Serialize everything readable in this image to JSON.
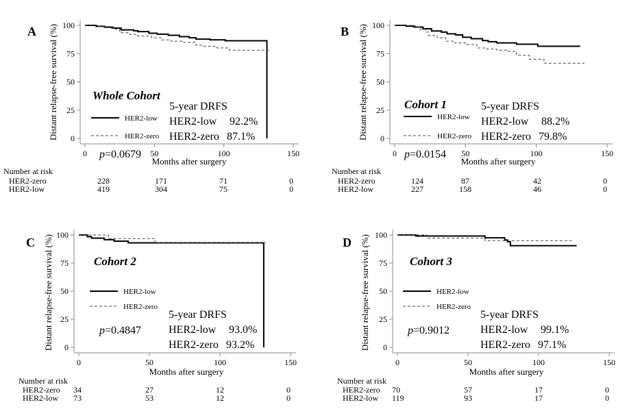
{
  "chart_data": [
    {
      "type": "line",
      "panel": "A",
      "title": "Whole Cohort",
      "xlabel": "Months after surgery",
      "ylabel": "Distant relapse-free survival (%)",
      "xlim": [
        0,
        150
      ],
      "ylim": [
        0,
        100
      ],
      "xticks": [
        "0",
        "50",
        "100",
        "150"
      ],
      "yticks": [
        "0",
        "25",
        "50",
        "75",
        "100"
      ],
      "legend": [
        "HER2-low",
        "HER2-zero"
      ],
      "pvalue_prefix": "p",
      "pvalue": "=0.0679",
      "drfs_title": "5-year DRFS",
      "drfs": [
        {
          "label": "HER2-low",
          "value": "92.2%"
        },
        {
          "label": "HER2-zero",
          "value": "87.1%"
        }
      ],
      "series": [
        {
          "name": "HER2-low",
          "style": "solid",
          "x": [
            0,
            8,
            14,
            20,
            26,
            35,
            38,
            46,
            52,
            60,
            68,
            75,
            80,
            90,
            101,
            131,
            131
          ],
          "y": [
            100,
            99.2,
            98.4,
            97.6,
            96.0,
            95.2,
            94.5,
            93.0,
            92.2,
            91.2,
            90.0,
            89.0,
            87.8,
            87.2,
            86.4,
            86.4,
            0
          ]
        },
        {
          "name": "HER2-zero",
          "style": "dashed",
          "x": [
            0,
            10,
            18,
            22,
            25,
            32,
            38,
            48,
            55,
            62,
            70,
            80,
            85,
            95,
            104,
            134
          ],
          "y": [
            100,
            99.0,
            97.5,
            96.5,
            93.5,
            92.0,
            90.5,
            89.0,
            87.1,
            86.0,
            85.0,
            82.5,
            81.5,
            80.0,
            78.0,
            78.0
          ]
        }
      ],
      "risk_table": {
        "title": "Number at risk",
        "times": [
          0,
          50,
          100,
          150
        ],
        "rows": [
          {
            "label": "HER2-zero",
            "values": [
              "228",
              "171",
              "71",
              "0"
            ]
          },
          {
            "label": "HER2-low",
            "values": [
              "419",
              "304",
              "75",
              "0"
            ]
          }
        ]
      }
    },
    {
      "type": "line",
      "panel": "B",
      "title": "Cohort 1",
      "xlabel": "Months after surgery",
      "ylabel": "Distant relapse-free survival (%)",
      "xlim": [
        0,
        150
      ],
      "ylim": [
        0,
        100
      ],
      "xticks": [
        "0",
        "50",
        "100",
        "150"
      ],
      "yticks": [
        "0",
        "25",
        "50",
        "75",
        "100"
      ],
      "legend": [
        "HER2-low",
        "HER2-zero"
      ],
      "pvalue_prefix": "p",
      "pvalue": "=0.0154",
      "drfs_title": "5-year DRFS",
      "drfs": [
        {
          "label": "HER2-low",
          "value": "88.2%"
        },
        {
          "label": "HER2-zero",
          "value": "79.8%"
        }
      ],
      "series": [
        {
          "name": "HER2-low",
          "style": "solid",
          "x": [
            0,
            8,
            14,
            20,
            26,
            33,
            37,
            43,
            48,
            54,
            62,
            66,
            72,
            86,
            101,
            131
          ],
          "y": [
            100,
            99.3,
            98.5,
            97.0,
            95.0,
            94.0,
            92.5,
            91.5,
            89.5,
            88.2,
            86.5,
            85.5,
            84.5,
            83.3,
            81.5,
            81.5
          ]
        },
        {
          "name": "HER2-zero",
          "style": "dashed",
          "x": [
            0,
            12,
            18,
            22,
            24,
            30,
            36,
            42,
            50,
            58,
            65,
            72,
            80,
            86,
            95,
            103,
            106,
            134
          ],
          "y": [
            100,
            98.5,
            96.5,
            94.0,
            91.0,
            89.0,
            86.0,
            84.5,
            83.0,
            80.0,
            79.0,
            78.0,
            77.0,
            73.5,
            70.0,
            69.5,
            66.5,
            66.5
          ]
        }
      ],
      "risk_table": {
        "title": "Number at risk",
        "times": [
          0,
          50,
          100,
          150
        ],
        "rows": [
          {
            "label": "HER2-zero",
            "values": [
              "124",
              "87",
              "42",
              "0"
            ]
          },
          {
            "label": "HER2-low",
            "values": [
              "227",
              "158",
              "46",
              "0"
            ]
          }
        ]
      }
    },
    {
      "type": "line",
      "panel": "C",
      "title": "Cohort 2",
      "xlabel": "Months after surgery",
      "ylabel": "Distant relapse-free survival (%)",
      "xlim": [
        0,
        150
      ],
      "ylim": [
        0,
        100
      ],
      "xticks": [
        "0",
        "50",
        "100",
        "150"
      ],
      "yticks": [
        "0",
        "25",
        "50",
        "75",
        "100"
      ],
      "legend": [
        "HER2-low",
        "HER2-zero"
      ],
      "pvalue_prefix": "p",
      "pvalue": "=0.4847",
      "drfs_title": "5-year DRFS",
      "drfs": [
        {
          "label": "HER2-low",
          "value": "93.0%"
        },
        {
          "label": "HER2-zero",
          "value": "93.2%"
        }
      ],
      "series": [
        {
          "name": "HER2-low",
          "style": "solid",
          "x": [
            0,
            6,
            9,
            18,
            25,
            35,
            131,
            131
          ],
          "y": [
            100,
            98.5,
            97.2,
            95.8,
            94.5,
            93.0,
            93.0,
            0
          ]
        },
        {
          "name": "HER2-zero",
          "style": "dashed",
          "x": [
            0,
            21,
            54,
            134
          ],
          "y": [
            100,
            96.8,
            93.2,
            93.2
          ]
        }
      ],
      "risk_table": {
        "title": "Number at risk",
        "times": [
          0,
          50,
          100,
          150
        ],
        "rows": [
          {
            "label": "HER2-zero",
            "values": [
              "34",
              "27",
              "12",
              "0"
            ]
          },
          {
            "label": "HER2-low",
            "values": [
              "73",
              "53",
              "12",
              "0"
            ]
          }
        ]
      }
    },
    {
      "type": "line",
      "panel": "D",
      "title": "Cohort 3",
      "xlabel": "Months after surgery",
      "ylabel": "Distant relapse-free survival (%)",
      "xlim": [
        0,
        150
      ],
      "ylim": [
        0,
        100
      ],
      "xticks": [
        "0",
        "50",
        "100",
        "150"
      ],
      "yticks": [
        "0",
        "25",
        "50",
        "75",
        "100"
      ],
      "legend": [
        "HER2-low",
        "HER2-zero"
      ],
      "pvalue_prefix": "p",
      "pvalue": "=0.9012",
      "drfs_title": "5-year DRFS",
      "drfs": [
        {
          "label": "HER2-low",
          "value": "99.1%"
        },
        {
          "label": "HER2-zero",
          "value": "97.1%"
        }
      ],
      "series": [
        {
          "name": "HER2-low",
          "style": "solid",
          "x": [
            0,
            13,
            62,
            76,
            78,
            80,
            127
          ],
          "y": [
            100,
            99.1,
            97.5,
            95.5,
            94.0,
            90.5,
            90.5
          ]
        },
        {
          "name": "HER2-zero",
          "style": "dashed",
          "x": [
            0,
            21,
            62,
            125
          ],
          "y": [
            100,
            97.1,
            95.0,
            95.0
          ]
        }
      ],
      "risk_table": {
        "title": "Number at risk",
        "times": [
          0,
          50,
          100,
          150
        ],
        "rows": [
          {
            "label": "HER2-zero",
            "values": [
              "70",
              "57",
              "17",
              "0"
            ]
          },
          {
            "label": "HER2-low",
            "values": [
              "119",
              "93",
              "17",
              "0"
            ]
          }
        ]
      }
    }
  ]
}
